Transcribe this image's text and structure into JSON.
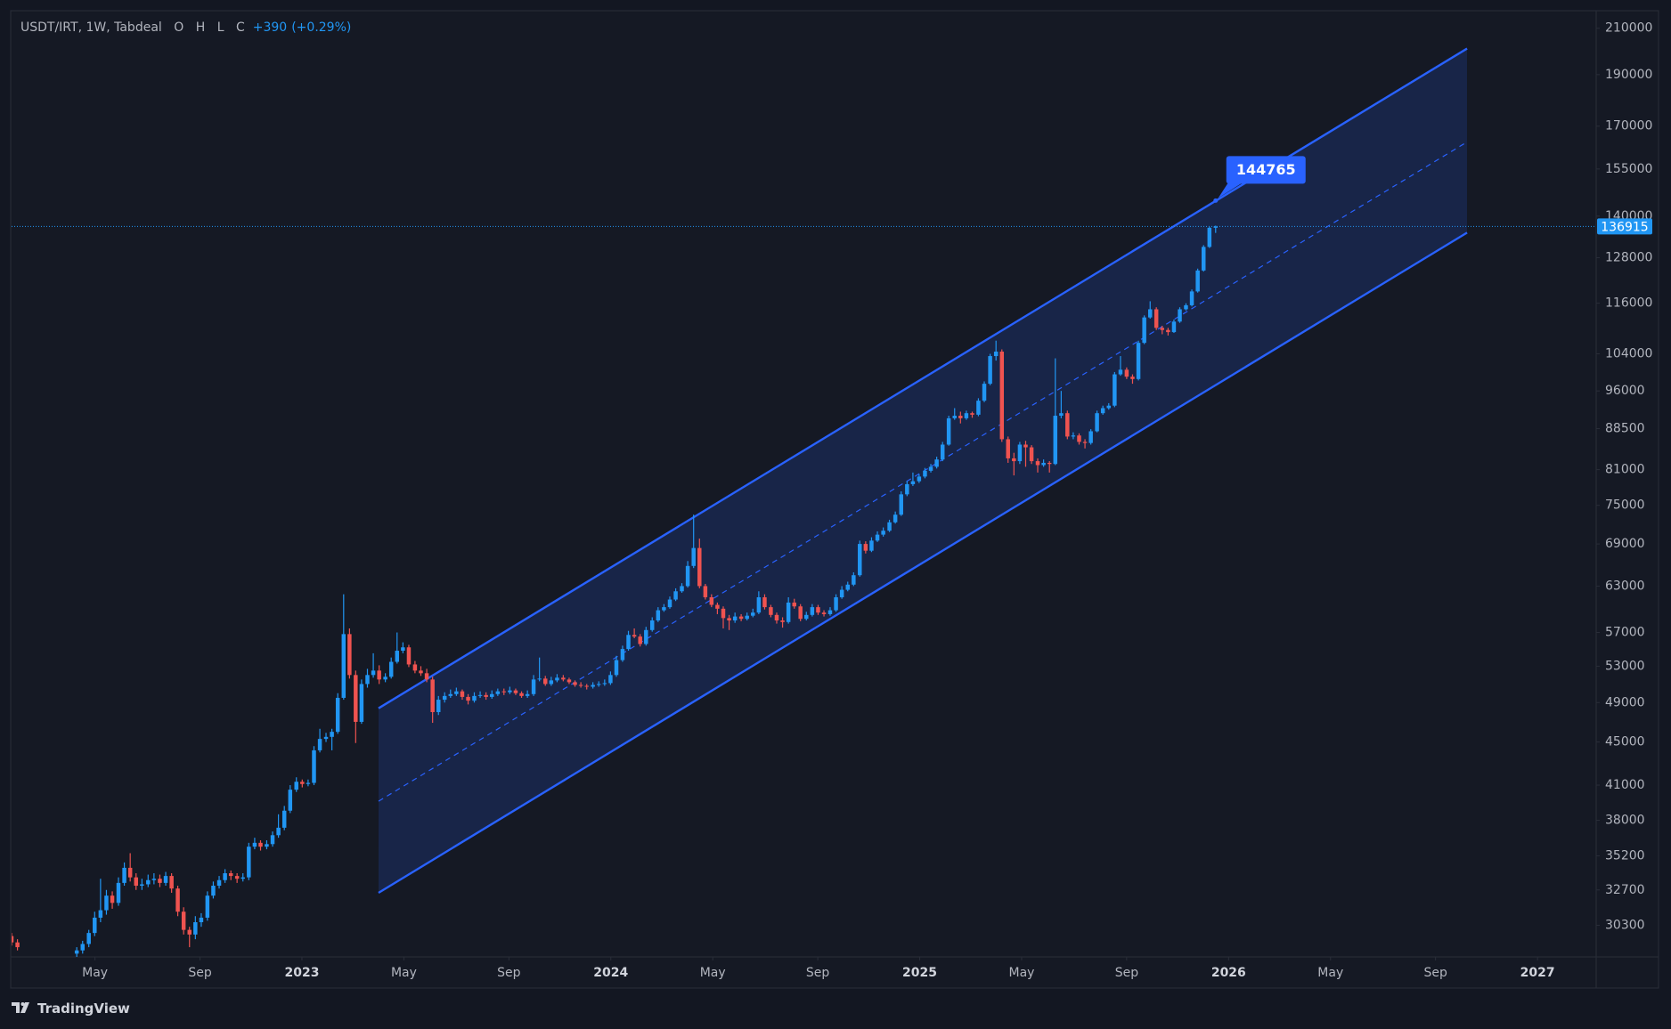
{
  "chart_data": {
    "type": "candlestick",
    "title": "USDT/IRT, 1W, Tabdeal",
    "legend_labels": [
      "O",
      "H",
      "L",
      "C"
    ],
    "change": {
      "value": 390,
      "label": "+390"
    },
    "change_pct": {
      "value": 0.29,
      "label": "(+0.29%)"
    },
    "log_scale": true,
    "grid": false,
    "up_color": "#2196f3",
    "down_color": "#ef5350",
    "channel_color": "#2962ff",
    "xlim": [
      2022.06,
      2027.19
    ],
    "ylim": [
      28300,
      217700
    ],
    "xticks": [
      {
        "value": 2022.33,
        "label": "May"
      },
      {
        "value": 2022.67,
        "label": "Sep"
      },
      2023,
      {
        "value": 2023.33,
        "label": "May"
      },
      {
        "value": 2023.67,
        "label": "Sep"
      },
      2024,
      {
        "value": 2024.33,
        "label": "May"
      },
      {
        "value": 2024.67,
        "label": "Sep"
      },
      2025,
      {
        "value": 2025.33,
        "label": "May"
      },
      {
        "value": 2025.67,
        "label": "Sep"
      },
      2026,
      {
        "value": 2026.33,
        "label": "May"
      },
      {
        "value": 2026.67,
        "label": "Sep"
      },
      2027
    ],
    "yticks": [
      210000,
      190000,
      170000,
      155000,
      140000,
      128000,
      116000,
      104000,
      96000,
      88500,
      81000,
      75000,
      69000,
      63000,
      57000,
      53000,
      49000,
      45000,
      41000,
      38000,
      35200,
      32700,
      30300
    ],
    "channel": {
      "x": [
        2023.248,
        2026.772
      ],
      "upper": [
        48400,
        201000
      ],
      "middle": [
        39600,
        164300
      ],
      "lower": [
        32500,
        135100
      ]
    },
    "annotation": 144765,
    "x": [
      2022.06,
      2022.079,
      2022.271,
      2022.29,
      2022.31,
      2022.329,
      2022.348,
      2022.367,
      2022.386,
      2022.406,
      2022.425,
      2022.444,
      2022.463,
      2022.482,
      2022.502,
      2022.521,
      2022.54,
      2022.559,
      2022.578,
      2022.598,
      2022.617,
      2022.636,
      2022.655,
      2022.674,
      2022.694,
      2022.713,
      2022.732,
      2022.751,
      2022.77,
      2022.79,
      2022.809,
      2022.828,
      2022.847,
      2022.866,
      2022.886,
      2022.905,
      2022.924,
      2022.943,
      2022.962,
      2022.982,
      2023.001,
      2023.02,
      2023.039,
      2023.058,
      2023.078,
      2023.097,
      2023.116,
      2023.135,
      2023.154,
      2023.174,
      2023.193,
      2023.212,
      2023.231,
      2023.25,
      2023.27,
      2023.289,
      2023.308,
      2023.327,
      2023.346,
      2023.366,
      2023.385,
      2023.404,
      2023.423,
      2023.442,
      2023.462,
      2023.481,
      2023.5,
      2023.519,
      2023.538,
      2023.558,
      2023.577,
      2023.596,
      2023.615,
      2023.634,
      2023.654,
      2023.673,
      2023.692,
      2023.711,
      2023.73,
      2023.75,
      2023.769,
      2023.788,
      2023.807,
      2023.826,
      2023.846,
      2023.865,
      2023.884,
      2023.903,
      2023.922,
      2023.942,
      2023.961,
      2023.98,
      2023.999,
      2024.018,
      2024.038,
      2024.057,
      2024.076,
      2024.095,
      2024.114,
      2024.134,
      2024.153,
      2024.172,
      2024.191,
      2024.21,
      2024.23,
      2024.249,
      2024.268,
      2024.287,
      2024.306,
      2024.326,
      2024.345,
      2024.364,
      2024.383,
      2024.402,
      2024.422,
      2024.441,
      2024.46,
      2024.479,
      2024.498,
      2024.518,
      2024.537,
      2024.556,
      2024.575,
      2024.594,
      2024.614,
      2024.633,
      2024.652,
      2024.671,
      2024.69,
      2024.71,
      2024.729,
      2024.748,
      2024.767,
      2024.786,
      2024.806,
      2024.825,
      2024.844,
      2024.863,
      2024.882,
      2024.902,
      2024.921,
      2024.94,
      2024.959,
      2024.978,
      2024.998,
      2025.017,
      2025.036,
      2025.055,
      2025.074,
      2025.094,
      2025.113,
      2025.132,
      2025.151,
      2025.17,
      2025.19,
      2025.209,
      2025.228,
      2025.247,
      2025.266,
      2025.286,
      2025.305,
      2025.324,
      2025.343,
      2025.362,
      2025.382,
      2025.401,
      2025.42,
      2025.439,
      2025.458,
      2025.478,
      2025.497,
      2025.516,
      2025.535,
      2025.554,
      2025.574,
      2025.593,
      2025.612,
      2025.631,
      2025.65,
      2025.67,
      2025.689,
      2025.708,
      2025.727,
      2025.746,
      2025.766,
      2025.785,
      2025.804,
      2025.823,
      2025.842,
      2025.862,
      2025.881,
      2025.9,
      2025.919,
      2025.938,
      2025.958
    ],
    "ohlc": [
      [
        29600,
        29800,
        29000,
        29200
      ],
      [
        29200,
        29400,
        28700,
        28900
      ],
      [
        28500,
        28900,
        28200,
        28700
      ],
      [
        28700,
        29300,
        28500,
        29100
      ],
      [
        29100,
        30000,
        28900,
        29800
      ],
      [
        29800,
        31200,
        29600,
        30800
      ],
      [
        30800,
        33500,
        30500,
        31300
      ],
      [
        31300,
        32700,
        31000,
        32300
      ],
      [
        32300,
        32600,
        31400,
        31800
      ],
      [
        31800,
        33600,
        31600,
        33200
      ],
      [
        33200,
        34700,
        33000,
        34300
      ],
      [
        34300,
        35400,
        33300,
        33600
      ],
      [
        33600,
        33900,
        32700,
        33000
      ],
      [
        33000,
        33500,
        32700,
        33100
      ],
      [
        33100,
        33800,
        32900,
        33400
      ],
      [
        33400,
        33900,
        33100,
        33500
      ],
      [
        33500,
        33800,
        32900,
        33200
      ],
      [
        33200,
        34000,
        33000,
        33700
      ],
      [
        33700,
        33900,
        32500,
        32800
      ],
      [
        32800,
        33000,
        30900,
        31200
      ],
      [
        31200,
        31500,
        29700,
        30000
      ],
      [
        30000,
        30200,
        28900,
        29700
      ],
      [
        29700,
        30900,
        29400,
        30500
      ],
      [
        30500,
        31100,
        30200,
        30800
      ],
      [
        30800,
        32600,
        30600,
        32300
      ],
      [
        32300,
        33300,
        32100,
        33000
      ],
      [
        33000,
        33700,
        32800,
        33400
      ],
      [
        33400,
        34200,
        33200,
        33900
      ],
      [
        33900,
        34100,
        33400,
        33700
      ],
      [
        33700,
        33900,
        33200,
        33500
      ],
      [
        33500,
        33900,
        33300,
        33600
      ],
      [
        33600,
        36200,
        33400,
        35900
      ],
      [
        35900,
        36600,
        35700,
        36200
      ],
      [
        36200,
        36400,
        35600,
        35900
      ],
      [
        35900,
        36400,
        35700,
        36100
      ],
      [
        36100,
        37100,
        35900,
        36800
      ],
      [
        36800,
        38500,
        36600,
        37400
      ],
      [
        37400,
        39200,
        37200,
        38800
      ],
      [
        38800,
        41000,
        38600,
        40600
      ],
      [
        40600,
        41700,
        40400,
        41300
      ],
      [
        41300,
        41500,
        40800,
        41100
      ],
      [
        41100,
        41500,
        40900,
        41200
      ],
      [
        41200,
        44600,
        41000,
        44200
      ],
      [
        44200,
        46300,
        44000,
        45300
      ],
      [
        45300,
        45900,
        45000,
        45500
      ],
      [
        45500,
        46300,
        44200,
        46000
      ],
      [
        46000,
        50000,
        45800,
        49500
      ],
      [
        49500,
        61900,
        49300,
        56800
      ],
      [
        56800,
        57500,
        51600,
        52000
      ],
      [
        52000,
        52500,
        44900,
        47000
      ],
      [
        47000,
        51500,
        46800,
        51000
      ],
      [
        51000,
        52700,
        50600,
        52000
      ],
      [
        52000,
        54500,
        51700,
        52500
      ],
      [
        52500,
        53100,
        51000,
        51500
      ],
      [
        51500,
        52200,
        51200,
        51800
      ],
      [
        51800,
        54000,
        51600,
        53500
      ],
      [
        53500,
        57000,
        53300,
        54800
      ],
      [
        54800,
        55800,
        54500,
        55200
      ],
      [
        55200,
        55500,
        52900,
        53200
      ],
      [
        53200,
        53600,
        52200,
        52500
      ],
      [
        52500,
        53000,
        51900,
        52200
      ],
      [
        52200,
        52700,
        51200,
        51500
      ],
      [
        51500,
        51800,
        46900,
        48000
      ],
      [
        48000,
        49700,
        47700,
        49300
      ],
      [
        49300,
        50100,
        49000,
        49700
      ],
      [
        49700,
        50400,
        49500,
        49900
      ],
      [
        49900,
        50600,
        49700,
        50200
      ],
      [
        50200,
        50400,
        49300,
        49600
      ],
      [
        49600,
        49900,
        48800,
        49200
      ],
      [
        49200,
        50100,
        49000,
        49700
      ],
      [
        49700,
        50200,
        49500,
        49800
      ],
      [
        49800,
        50100,
        49300,
        49600
      ],
      [
        49600,
        50300,
        49400,
        49900
      ],
      [
        49900,
        50500,
        49700,
        50200
      ],
      [
        50200,
        50500,
        49800,
        50100
      ],
      [
        50100,
        50700,
        49900,
        50300
      ],
      [
        50300,
        50500,
        49800,
        50000
      ],
      [
        50000,
        50200,
        49500,
        49700
      ],
      [
        49700,
        50300,
        49500,
        49900
      ],
      [
        49900,
        52000,
        49700,
        51500
      ],
      [
        51500,
        54000,
        51300,
        51600
      ],
      [
        51600,
        51900,
        50800,
        51000
      ],
      [
        51000,
        51800,
        50800,
        51400
      ],
      [
        51400,
        52100,
        51200,
        51700
      ],
      [
        51700,
        52000,
        51300,
        51500
      ],
      [
        51500,
        51700,
        51000,
        51200
      ],
      [
        51200,
        51400,
        50700,
        50900
      ],
      [
        50900,
        51200,
        50600,
        50800
      ],
      [
        50800,
        51000,
        50400,
        50700
      ],
      [
        50700,
        51200,
        50500,
        50900
      ],
      [
        50900,
        51300,
        50700,
        51000
      ],
      [
        51000,
        51500,
        50800,
        51100
      ],
      [
        51100,
        52400,
        50900,
        52000
      ],
      [
        52000,
        54200,
        51800,
        53700
      ],
      [
        53700,
        55400,
        53500,
        55000
      ],
      [
        55000,
        57200,
        54800,
        56700
      ],
      [
        56700,
        57500,
        56300,
        56500
      ],
      [
        56500,
        56800,
        55300,
        55600
      ],
      [
        55600,
        57700,
        55400,
        57300
      ],
      [
        57300,
        58900,
        57100,
        58500
      ],
      [
        58500,
        60200,
        58300,
        59800
      ],
      [
        59800,
        60600,
        59600,
        60200
      ],
      [
        60200,
        61600,
        60000,
        61200
      ],
      [
        61200,
        62700,
        61000,
        62300
      ],
      [
        62300,
        63400,
        62100,
        63000
      ],
      [
        63000,
        66500,
        62800,
        65800
      ],
      [
        65800,
        73500,
        65500,
        68400
      ],
      [
        68400,
        69800,
        62700,
        63000
      ],
      [
        63000,
        63300,
        61200,
        61500
      ],
      [
        61500,
        61900,
        60200,
        60500
      ],
      [
        60500,
        60800,
        59300,
        60000
      ],
      [
        60000,
        60300,
        57500,
        58800
      ],
      [
        58800,
        59200,
        57300,
        58500
      ],
      [
        58500,
        59500,
        58200,
        59000
      ],
      [
        59000,
        59300,
        58400,
        58700
      ],
      [
        58700,
        59500,
        58500,
        59100
      ],
      [
        59100,
        60000,
        58900,
        59500
      ],
      [
        59500,
        62300,
        59300,
        61500
      ],
      [
        61500,
        61900,
        59900,
        60200
      ],
      [
        60200,
        60500,
        58900,
        59200
      ],
      [
        59200,
        59500,
        58100,
        58500
      ],
      [
        58500,
        58900,
        57600,
        58300
      ],
      [
        58300,
        61500,
        58100,
        60800
      ],
      [
        60800,
        61300,
        60000,
        60300
      ],
      [
        60300,
        60600,
        58400,
        58700
      ],
      [
        58700,
        59600,
        58500,
        59200
      ],
      [
        59200,
        60600,
        59000,
        60200
      ],
      [
        60200,
        60500,
        59200,
        59500
      ],
      [
        59500,
        59800,
        59000,
        59300
      ],
      [
        59300,
        60200,
        59100,
        59800
      ],
      [
        59800,
        61900,
        59600,
        61500
      ],
      [
        61500,
        63000,
        61300,
        62500
      ],
      [
        62500,
        63600,
        62300,
        63200
      ],
      [
        63200,
        64900,
        63000,
        64500
      ],
      [
        64500,
        69500,
        64300,
        69000
      ],
      [
        69000,
        69400,
        67600,
        68000
      ],
      [
        68000,
        70000,
        67800,
        69500
      ],
      [
        69500,
        70900,
        69300,
        70400
      ],
      [
        70400,
        71500,
        70100,
        71000
      ],
      [
        71000,
        72700,
        70800,
        72300
      ],
      [
        72300,
        74000,
        72100,
        73500
      ],
      [
        73500,
        77300,
        73300,
        76800
      ],
      [
        76800,
        79000,
        76500,
        78500
      ],
      [
        78500,
        80500,
        78200,
        79000
      ],
      [
        79000,
        80200,
        78700,
        79800
      ],
      [
        79800,
        81300,
        79500,
        80800
      ],
      [
        80800,
        82000,
        80500,
        81500
      ],
      [
        81500,
        83300,
        81200,
        82800
      ],
      [
        82800,
        86000,
        82500,
        85500
      ],
      [
        85500,
        91000,
        85300,
        90500
      ],
      [
        90500,
        92500,
        90200,
        91000
      ],
      [
        91000,
        91800,
        89500,
        90500
      ],
      [
        90500,
        92000,
        90200,
        91500
      ],
      [
        91500,
        91800,
        90600,
        91200
      ],
      [
        91200,
        94500,
        90900,
        94000
      ],
      [
        94000,
        98000,
        93700,
        97500
      ],
      [
        97500,
        104000,
        97200,
        103500
      ],
      [
        103500,
        107000,
        102500,
        104500
      ],
      [
        104500,
        105000,
        86000,
        86500
      ],
      [
        86500,
        87000,
        82200,
        83000
      ],
      [
        83000,
        84000,
        80000,
        82500
      ],
      [
        82500,
        86000,
        82000,
        85500
      ],
      [
        85500,
        86200,
        81500,
        85000
      ],
      [
        85000,
        85400,
        82000,
        82500
      ],
      [
        82500,
        83000,
        80500,
        81800
      ],
      [
        81800,
        82800,
        81500,
        82200
      ],
      [
        82200,
        82500,
        80500,
        82000
      ],
      [
        82000,
        103000,
        81800,
        91000
      ],
      [
        91000,
        96000,
        90500,
        91500
      ],
      [
        91500,
        92000,
        86500,
        87000
      ],
      [
        87000,
        87800,
        86500,
        87200
      ],
      [
        87200,
        87600,
        85500,
        86000
      ],
      [
        86000,
        86500,
        84800,
        85800
      ],
      [
        85800,
        88400,
        85500,
        88000
      ],
      [
        88000,
        92000,
        87800,
        91500
      ],
      [
        91500,
        93000,
        91200,
        92500
      ],
      [
        92500,
        93500,
        92200,
        93000
      ],
      [
        93000,
        100000,
        92700,
        99500
      ],
      [
        99500,
        103500,
        99200,
        100500
      ],
      [
        100500,
        101000,
        98500,
        99000
      ],
      [
        99000,
        99500,
        97500,
        98500
      ],
      [
        98500,
        107000,
        98200,
        106500
      ],
      [
        106500,
        113000,
        106200,
        112500
      ],
      [
        112500,
        116500,
        112200,
        114500
      ],
      [
        114500,
        115000,
        109500,
        110000
      ],
      [
        110000,
        110500,
        108500,
        109500
      ],
      [
        109500,
        110000,
        108200,
        109000
      ],
      [
        109000,
        112000,
        108800,
        111500
      ],
      [
        111500,
        115000,
        111200,
        114500
      ],
      [
        114500,
        116000,
        114200,
        115500
      ],
      [
        115500,
        119500,
        115200,
        119000
      ],
      [
        119000,
        125000,
        118700,
        124500
      ],
      [
        124500,
        131500,
        124200,
        131000
      ],
      [
        131000,
        136800,
        130700,
        136525
      ],
      [
        136525,
        137168,
        135018,
        136915
      ]
    ],
    "footer": "TradingView"
  }
}
